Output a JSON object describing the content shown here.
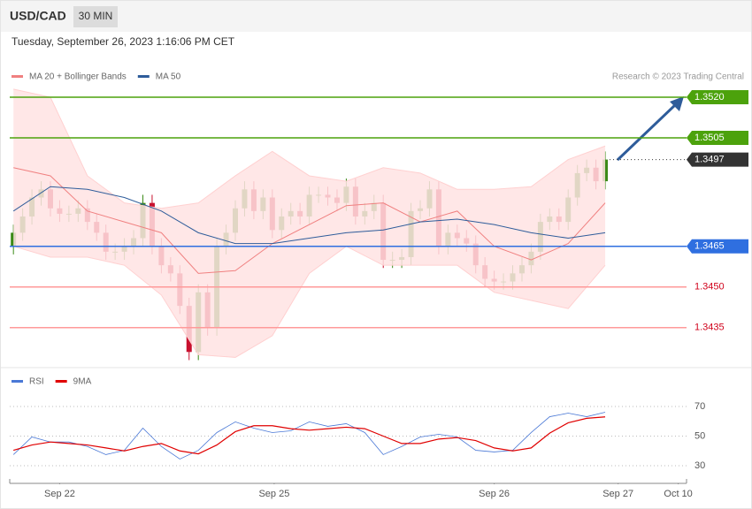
{
  "header": {
    "symbol": "USD/CAD",
    "interval": "30 MIN",
    "timestamp": "Tuesday, September 26, 2023 1:16:06 PM CET"
  },
  "chart_data": {
    "type": "candlestick",
    "legend": [
      {
        "name": "MA 20 + Bollinger Bands",
        "color": "#f08080"
      },
      {
        "name": "MA 50",
        "color": "#2e5c9a"
      }
    ],
    "credit": "Research © 2023 Trading Central",
    "open": [
      1.3465,
      1.347,
      1.3476,
      1.3483,
      1.3486,
      1.3479,
      1.3477,
      1.3477,
      1.3479,
      1.3474,
      1.347,
      1.3463,
      1.3463,
      1.3465,
      1.3468,
      1.3481,
      1.3465,
      1.3458,
      1.3455,
      1.3443,
      1.3426,
      1.3448,
      1.3435,
      1.3465,
      1.347,
      1.3479,
      1.3486,
      1.3478,
      1.3483,
      1.3471,
      1.3476,
      1.3478,
      1.3476,
      1.3484,
      1.3484,
      1.3483,
      1.3481,
      1.3487,
      1.3476,
      1.3478,
      1.3481,
      1.346,
      1.346,
      1.3461,
      1.3478,
      1.3479,
      1.3486,
      1.3465,
      1.347,
      1.3468,
      1.3466,
      1.3458,
      1.3453,
      1.3452,
      1.3452,
      1.3455,
      1.3458,
      1.3463,
      1.3474,
      1.3476,
      1.3474,
      1.3483,
      1.3492,
      1.3494,
      1.3489
    ],
    "high": [
      1.3473,
      1.3479,
      1.3486,
      1.3489,
      1.3489,
      1.3482,
      1.348,
      1.3482,
      1.3482,
      1.3477,
      1.3473,
      1.3466,
      1.3468,
      1.3471,
      1.3484,
      1.3484,
      1.3468,
      1.3461,
      1.3458,
      1.3446,
      1.3451,
      1.3451,
      1.3468,
      1.3473,
      1.3482,
      1.3489,
      1.3489,
      1.3486,
      1.3486,
      1.3479,
      1.3481,
      1.3481,
      1.3487,
      1.3487,
      1.3487,
      1.3486,
      1.349,
      1.349,
      1.3481,
      1.3484,
      1.3484,
      1.3463,
      1.3464,
      1.3481,
      1.3482,
      1.3489,
      1.3489,
      1.3473,
      1.3473,
      1.3471,
      1.3469,
      1.3461,
      1.3456,
      1.3455,
      1.3458,
      1.3461,
      1.3466,
      1.3477,
      1.3479,
      1.3479,
      1.3486,
      1.3495,
      1.3497,
      1.3497,
      1.35
    ],
    "low": [
      1.3462,
      1.3467,
      1.3473,
      1.348,
      1.3476,
      1.3474,
      1.3474,
      1.3474,
      1.3471,
      1.3467,
      1.346,
      1.346,
      1.346,
      1.3462,
      1.3465,
      1.3462,
      1.3455,
      1.3452,
      1.344,
      1.3423,
      1.3423,
      1.3432,
      1.3432,
      1.3462,
      1.3467,
      1.3476,
      1.3475,
      1.3475,
      1.3468,
      1.3468,
      1.3473,
      1.3473,
      1.3473,
      1.3481,
      1.348,
      1.3478,
      1.3478,
      1.3473,
      1.3473,
      1.3475,
      1.3457,
      1.3457,
      1.3457,
      1.3458,
      1.3475,
      1.3476,
      1.3462,
      1.3462,
      1.3465,
      1.3463,
      1.3455,
      1.345,
      1.3449,
      1.3449,
      1.3449,
      1.3452,
      1.3455,
      1.346,
      1.3471,
      1.3471,
      1.3471,
      1.348,
      1.3489,
      1.3486,
      1.3486
    ],
    "close": [
      1.347,
      1.3476,
      1.3483,
      1.3486,
      1.3479,
      1.3477,
      1.3477,
      1.3479,
      1.3474,
      1.347,
      1.3463,
      1.3463,
      1.3465,
      1.3468,
      1.3481,
      1.3465,
      1.3458,
      1.3455,
      1.3443,
      1.3426,
      1.3448,
      1.3435,
      1.3465,
      1.347,
      1.3479,
      1.3486,
      1.3478,
      1.3483,
      1.3471,
      1.3476,
      1.3478,
      1.3476,
      1.3484,
      1.3484,
      1.3483,
      1.3481,
      1.3487,
      1.3476,
      1.3478,
      1.3481,
      1.346,
      1.346,
      1.3461,
      1.3478,
      1.3479,
      1.3486,
      1.3465,
      1.347,
      1.3468,
      1.3466,
      1.3458,
      1.3453,
      1.3452,
      1.3452,
      1.3455,
      1.3458,
      1.3463,
      1.3474,
      1.3476,
      1.3474,
      1.3483,
      1.3492,
      1.3494,
      1.3489,
      1.3497
    ],
    "up_color": "#3b8a17",
    "down_color": "#c8102e",
    "ma_x": [
      0,
      4,
      8,
      12,
      16,
      20,
      24,
      28,
      32,
      36,
      40,
      44,
      48,
      52,
      56,
      60,
      64
    ],
    "ma50": [
      1.3478,
      1.3487,
      1.3486,
      1.3483,
      1.3478,
      1.347,
      1.3466,
      1.3466,
      1.3468,
      1.347,
      1.3471,
      1.3474,
      1.3475,
      1.3473,
      1.347,
      1.3468,
      1.347
    ],
    "ma20": [
      1.3494,
      1.3491,
      1.3478,
      1.3474,
      1.347,
      1.3455,
      1.3456,
      1.3466,
      1.3473,
      1.348,
      1.3481,
      1.3474,
      1.3478,
      1.3465,
      1.346,
      1.3466,
      1.3481
    ],
    "bb_upper": [
      1.3523,
      1.352,
      1.3491,
      1.3481,
      1.3479,
      1.3481,
      1.3491,
      1.35,
      1.3491,
      1.3489,
      1.3494,
      1.3492,
      1.3486,
      1.3486,
      1.3487,
      1.3497,
      1.3502
    ],
    "bb_lower": [
      1.3465,
      1.3461,
      1.3461,
      1.3458,
      1.3447,
      1.3425,
      1.3424,
      1.3432,
      1.3455,
      1.3465,
      1.3458,
      1.3458,
      1.3458,
      1.3448,
      1.3445,
      1.3442,
      1.3458
    ],
    "levels": [
      {
        "value": 1.352,
        "label": "1.3520",
        "color": "#4ca20c",
        "box": true
      },
      {
        "value": 1.3505,
        "color": "#4ca20c",
        "box": true
      },
      {
        "value": 1.3497,
        "color": "#333333",
        "box": true,
        "dotted": true
      },
      {
        "value": 1.3465,
        "color": "#2f6fe0",
        "box": true
      },
      {
        "value": 1.345,
        "label": "1.3450",
        "color": "#ff9a9a",
        "text_color": "#d0021b",
        "box": false
      },
      {
        "value": 1.3435,
        "color": "#ff9a9a",
        "text_color": "#d0021b",
        "box": false
      }
    ],
    "ylim": [
      1.342,
      1.3525
    ],
    "xlim": [
      -0.4,
      72.8
    ],
    "xticks": [
      {
        "value": 5,
        "label": "Sep 22"
      },
      {
        "value": 28.2,
        "label": "Sep 25"
      },
      {
        "value": 52,
        "label": "Sep 26"
      },
      {
        "value": 65.4,
        "label": "Sep 27"
      },
      {
        "value": 71.9,
        "label": "Oct 10"
      }
    ],
    "rsi": {
      "legend": [
        {
          "name": "RSI",
          "color": "#4a78d6"
        },
        {
          "name": "9MA",
          "color": "#e00000"
        }
      ],
      "x": [
        0,
        2,
        4,
        6,
        8,
        10,
        12,
        14,
        16,
        18,
        20,
        22,
        24,
        26,
        28,
        30,
        32,
        34,
        36,
        38,
        40,
        42,
        44,
        46,
        48,
        50,
        52,
        54,
        56,
        58,
        60,
        62,
        64
      ],
      "rsi": [
        37.5,
        49.4,
        46,
        46,
        43,
        37.5,
        40.4,
        55.4,
        43,
        34.5,
        40.4,
        52.4,
        59.6,
        55.4,
        52.4,
        53.6,
        59.6,
        56.6,
        58.4,
        52.4,
        37.5,
        43,
        49.4,
        51.2,
        49.4,
        40.4,
        39.3,
        40.4,
        52.4,
        63.1,
        65.5,
        63.1,
        66.1
      ],
      "ma9": [
        40.4,
        44,
        46,
        45,
        44,
        42,
        40,
        43,
        45,
        40,
        38,
        44,
        53,
        57,
        57,
        55,
        54,
        55,
        56,
        55,
        50,
        45,
        45,
        48,
        49,
        47,
        42,
        40,
        42,
        52,
        59,
        62,
        63
      ],
      "ylim": [
        20,
        80
      ],
      "yticks": [
        30,
        50,
        70
      ]
    }
  }
}
